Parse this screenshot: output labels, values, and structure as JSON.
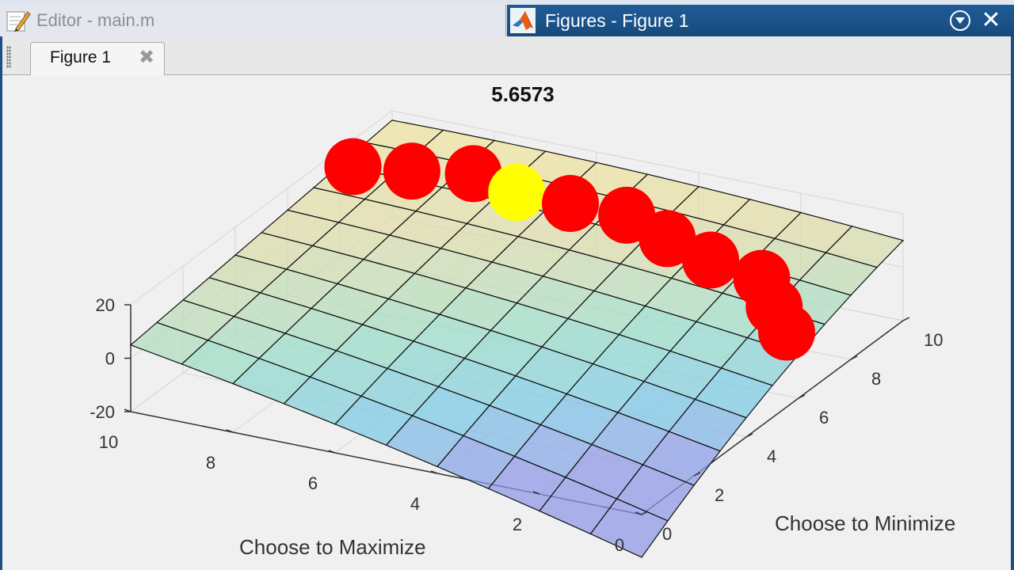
{
  "window": {
    "editor_tab_label": "Editor - main.m",
    "figures_tab_label": "Figures - Figure 1",
    "figure_tab_label": "Figure 1",
    "close_glyph": "✕",
    "tab_close_glyph": "✖"
  },
  "icons": {
    "editor": "pencil-icon",
    "matlab": "matlab-logo-icon",
    "menu": "chevron-down-circle-icon",
    "close": "close-icon"
  },
  "colors": {
    "accent": "#174a7e",
    "marker_red": "#ff0000",
    "marker_highlight": "#ffff00"
  },
  "chart_data": {
    "type": "surface",
    "title": "5.6573",
    "xlabel": "Choose to Maximize",
    "ylabel": "Choose to Minimize",
    "x_ticks": [
      "0",
      "2",
      "4",
      "6",
      "8",
      "10"
    ],
    "y_ticks": [
      "0",
      "2",
      "4",
      "6",
      "8",
      "10"
    ],
    "z_ticks": [
      "-20",
      "0",
      "20"
    ],
    "xlim": [
      0,
      10
    ],
    "ylim": [
      0,
      10
    ],
    "zlim": [
      -20,
      20
    ],
    "grid": true,
    "markers": [
      {
        "x": 10,
        "y": 8.5,
        "z": 10,
        "color": "red"
      },
      {
        "x": 9,
        "y": 8.8,
        "z": 10,
        "color": "red"
      },
      {
        "x": 8,
        "y": 9.2,
        "z": 10,
        "color": "red"
      },
      {
        "x": 7,
        "y": 8.9,
        "z": 9,
        "color": "yellow"
      },
      {
        "x": 6,
        "y": 9,
        "z": 8,
        "color": "red"
      },
      {
        "x": 5,
        "y": 9.2,
        "z": 6,
        "color": "red"
      },
      {
        "x": 4,
        "y": 8.8,
        "z": 4,
        "color": "red"
      },
      {
        "x": 3,
        "y": 8.5,
        "z": 2,
        "color": "red"
      },
      {
        "x": 2,
        "y": 8.5,
        "z": -1,
        "color": "red"
      },
      {
        "x": 1.5,
        "y": 8,
        "z": -6,
        "color": "red"
      },
      {
        "x": 1,
        "y": 7.5,
        "z": -10,
        "color": "red"
      }
    ]
  }
}
